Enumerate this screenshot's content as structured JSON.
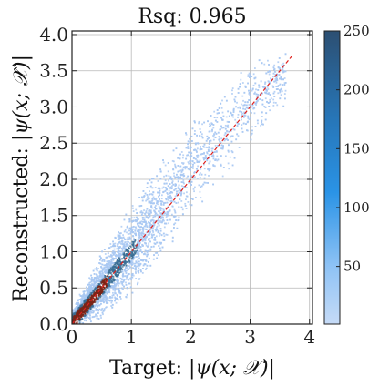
{
  "chart_data": {
    "type": "heatmap",
    "subtype": "2d-histogram-scatter",
    "title": "Rsq: 0.965",
    "xlabel": {
      "prefix": "Target: ",
      "math": "|ψ(x; 𝒳)|"
    },
    "ylabel": {
      "prefix": "Reconstructed: ",
      "math": "|ψ(x; 𝒳̂)|"
    },
    "xlim": [
      0,
      4.05
    ],
    "ylim": [
      0,
      4.05
    ],
    "x_ticks": [
      {
        "value": 0,
        "label": "0"
      },
      {
        "value": 1,
        "label": "1"
      },
      {
        "value": 2,
        "label": "2"
      },
      {
        "value": 3,
        "label": "3"
      },
      {
        "value": 4,
        "label": "4"
      }
    ],
    "y_ticks": [
      {
        "value": 0.0,
        "label": "0.0"
      },
      {
        "value": 0.5,
        "label": "0.5"
      },
      {
        "value": 1.0,
        "label": "1.0"
      },
      {
        "value": 1.5,
        "label": "1.5"
      },
      {
        "value": 2.0,
        "label": "2.0"
      },
      {
        "value": 2.5,
        "label": "2.5"
      },
      {
        "value": 3.0,
        "label": "3.0"
      },
      {
        "value": 3.5,
        "label": "3.5"
      },
      {
        "value": 4.0,
        "label": "4.0"
      }
    ],
    "grid": true,
    "reference_line": {
      "from": [
        0,
        0
      ],
      "to": [
        3.7,
        3.7
      ],
      "color": "#e0201c",
      "style": "dashed"
    },
    "density_band": [
      {
        "x": 0.0,
        "low": 0.0,
        "high": 0.15
      },
      {
        "x": 0.5,
        "low": 0.12,
        "high": 0.95
      },
      {
        "x": 1.0,
        "low": 0.45,
        "high": 1.6
      },
      {
        "x": 1.5,
        "low": 0.95,
        "high": 2.2
      },
      {
        "x": 2.0,
        "low": 1.55,
        "high": 2.75
      },
      {
        "x": 2.5,
        "low": 2.0,
        "high": 3.2
      },
      {
        "x": 3.0,
        "low": 2.55,
        "high": 3.55
      },
      {
        "x": 3.5,
        "low": 3.05,
        "high": 3.75
      }
    ],
    "colorbar": {
      "min": 1,
      "max": 250,
      "ticks": [
        {
          "value": 50,
          "label": "50"
        },
        {
          "value": 100,
          "label": "100"
        },
        {
          "value": 150,
          "label": "150"
        },
        {
          "value": 200,
          "label": "200"
        },
        {
          "value": 250,
          "label": "250"
        }
      ],
      "color_low": "#c6dbf7",
      "color_mid": "#2a93e6",
      "color_high": "#2c4f72"
    },
    "colors": {
      "sparse": "#a9c8f2",
      "dense": "#3a6f96",
      "core": "#7a2418"
    }
  }
}
